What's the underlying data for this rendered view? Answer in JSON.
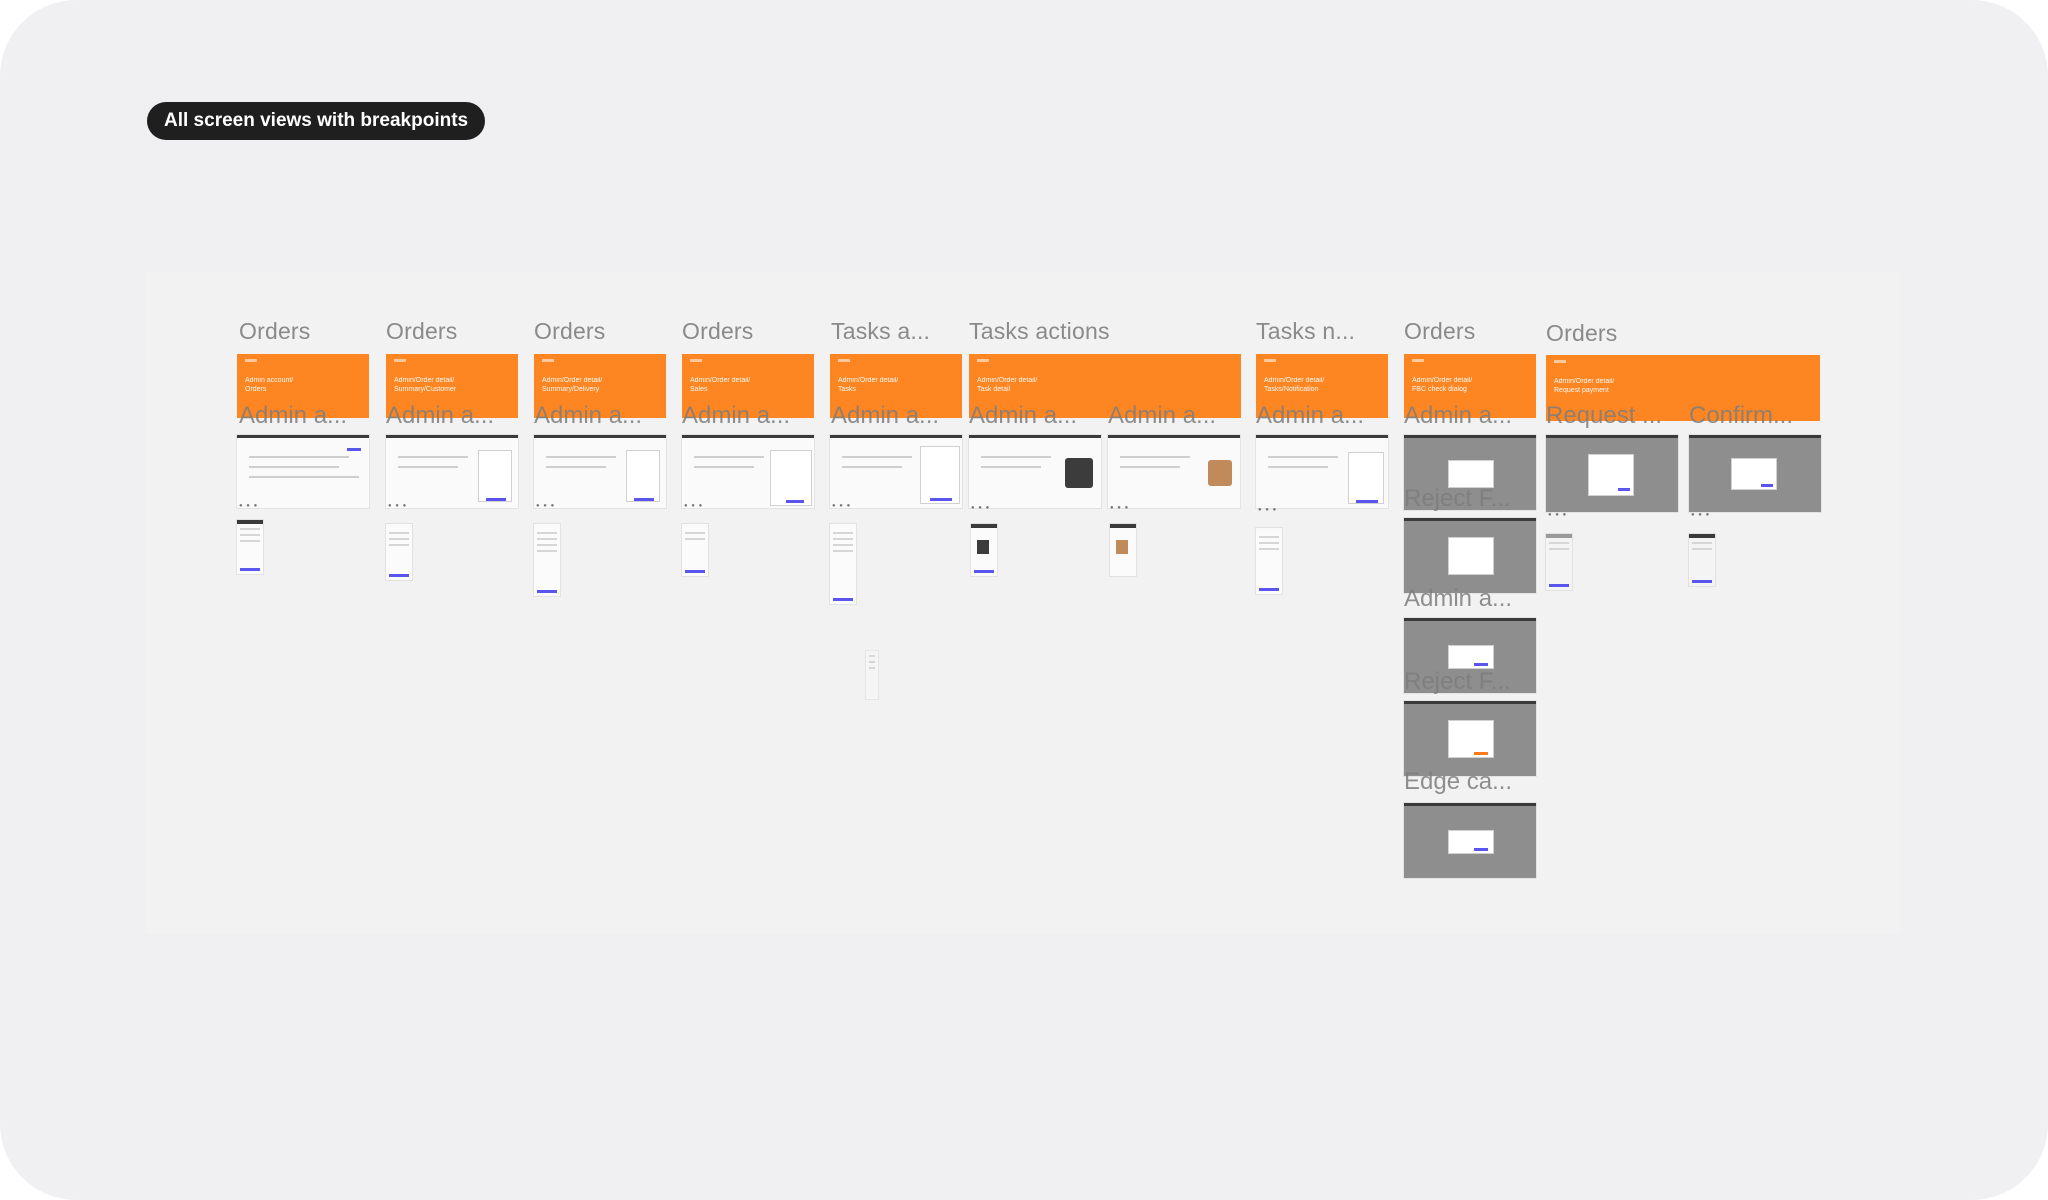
{
  "header": {
    "label": "All screen views with breakpoints"
  },
  "columns": [
    {
      "title": "Orders",
      "banner": "Admin account/\nOrders",
      "frames": [
        "Admin a..."
      ]
    },
    {
      "title": "Orders",
      "banner": "Admin/Order detail/\nSummary/Customer",
      "frames": [
        "Admin a..."
      ]
    },
    {
      "title": "Orders",
      "banner": "Admin/Order detail/\nSummary/Delivery",
      "frames": [
        "Admin a..."
      ]
    },
    {
      "title": "Orders",
      "banner": "Admin/Order detail/\nSales",
      "frames": [
        "Admin a..."
      ]
    },
    {
      "title": "Tasks a...",
      "banner": "Admin/Order detail/\nTasks",
      "frames": [
        "Admin a..."
      ]
    },
    {
      "title": "Tasks actions",
      "banner": "Admin/Order detail/\nTask detail",
      "frames": [
        "Admin a...",
        "Admin a..."
      ]
    },
    {
      "title": "Tasks n...",
      "banner": "Admin/Order detail/\nTasks/Notification",
      "frames": [
        "Admin a..."
      ]
    },
    {
      "title": "Orders",
      "banner": "Admin/Order detail/\nFBC check dialog",
      "frames": [
        "Admin a...",
        "Reject F...",
        "Admin a...",
        "Reject F...",
        "Edge ca..."
      ]
    },
    {
      "title": "Orders",
      "banner": "Admin/Order detail/\nRequest payment",
      "frames": [
        "Request ...",
        "Confirm..."
      ]
    }
  ],
  "theme": {
    "banner_color": "#fe8622",
    "pill_color": "#1f1f1f",
    "canvas_color": "#f0f0f2",
    "accent_blue": "#5b55f0"
  }
}
